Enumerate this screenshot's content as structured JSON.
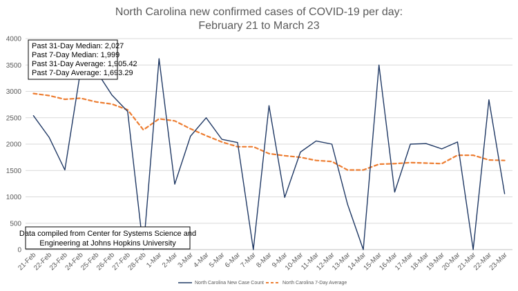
{
  "chart_data": {
    "type": "line",
    "title_lines": [
      "North Carolina new confirmed cases of COVID-19 per day:",
      "February 21 to March 23"
    ],
    "categories": [
      "21-Feb",
      "22-Feb",
      "23-Feb",
      "24-Feb",
      "25-Feb",
      "26-Feb",
      "27-Feb",
      "28-Feb",
      "1-Mar",
      "2-Mar",
      "3-Mar",
      "4-Mar",
      "5-Mar",
      "6-Mar",
      "7-Mar",
      "8-Mar",
      "9-Mar",
      "10-Mar",
      "11-Mar",
      "12-Mar",
      "13-Mar",
      "14-Mar",
      "15-Mar",
      "16-Mar",
      "17-Mar",
      "18-Mar",
      "19-Mar",
      "20-Mar",
      "21-Mar",
      "22-Mar",
      "23-Mar"
    ],
    "series": [
      {
        "name": "North Carolina New Case Count",
        "color": "#1f3864",
        "style": "solid",
        "values": [
          2540,
          2130,
          1510,
          3390,
          3390,
          2930,
          2620,
          0,
          3620,
          1240,
          2150,
          2500,
          2090,
          2030,
          0,
          2730,
          990,
          1850,
          2060,
          2000,
          860,
          0,
          3500,
          1090,
          2000,
          2010,
          1910,
          2040,
          0,
          2840,
          1060
        ]
      },
      {
        "name": "North Carolina 7-Day Average",
        "color": "#ed7d31",
        "style": "dashed",
        "values": [
          2960,
          2920,
          2850,
          2870,
          2800,
          2760,
          2650,
          2270,
          2480,
          2440,
          2290,
          2160,
          2040,
          1950,
          1950,
          1820,
          1780,
          1750,
          1690,
          1670,
          1510,
          1510,
          1620,
          1630,
          1650,
          1640,
          1630,
          1790,
          1790,
          1700,
          1690
        ]
      }
    ],
    "ylim": [
      0,
      4000
    ],
    "yticks": [
      "0",
      "500",
      "1000",
      "1500",
      "2000",
      "2500",
      "3000",
      "3500",
      "4000"
    ],
    "grid": true,
    "legend_position": "bottom",
    "stats_box": [
      "Past 31-Day Median: 2,027",
      "Past 7-Day Median: 1,999",
      "Past 31-Day Average: 1,905.42",
      "Past 7-Day Average: 1,693.29"
    ],
    "source_note": [
      "Data compiled from Center for Systems Science and",
      "Engineering at Johns Hopkins University"
    ]
  }
}
